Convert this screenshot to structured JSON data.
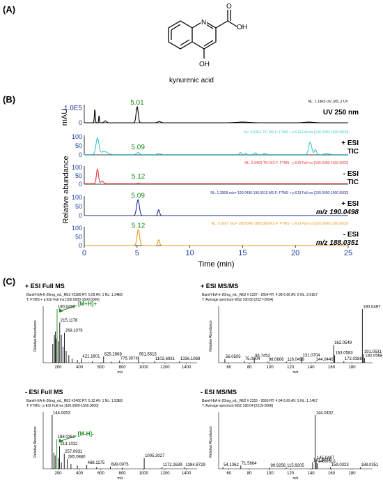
{
  "panel_labels": {
    "a": "(A)",
    "b": "(B)",
    "c": "(C)"
  },
  "structure": {
    "name": "kynurenic acid",
    "atoms": {
      "n": "N",
      "oh_acid": "OH",
      "o_acid": "O",
      "oh_ring": "OH"
    }
  },
  "chart_b": {
    "ylabel_mau": "mAU",
    "ylabel_rel": "Relative abundance",
    "xlabel": "Time (min)",
    "xlim": [
      0,
      25
    ],
    "xticks": [
      "0",
      "5",
      "10",
      "15",
      "20",
      "25"
    ],
    "traces": [
      {
        "key": "uv",
        "color": "#000000",
        "header": "NL: 1.19E5  UV_MS_2 UV",
        "label1": "UV 250 nm",
        "label2": "",
        "ytop": "1.0E5",
        "yzero": "0",
        "peak_label": "5.01",
        "peak_time": 5.01
      },
      {
        "key": "pos_tic",
        "color": "#3cc8cc",
        "header": "NL: 4.52E9  TIC  MS  F: FTMS + p ESI Full ms [100.0000-1500.0000]",
        "label1": "+ ESI",
        "label2": "TIC",
        "ytop": "100",
        "ymid": "50",
        "yzero": "0",
        "peak_label": "5.09",
        "peak_time": 5.09
      },
      {
        "key": "neg_tic",
        "color": "#e03c3c",
        "header": "NL: 2.34E9  TIC  MS  F: FTMS - p ESI Full ms [100.0000-1500.0000]",
        "label1": "- ESI",
        "label2": "TIC",
        "ytop": "100",
        "ymid": "50",
        "yzero": "0",
        "peak_label": "5.12",
        "peak_time": 5.12
      },
      {
        "key": "pos_xic",
        "color": "#1f2b96",
        "header": "NL: 1.35E8  m/z= 190.0490-190.0510  MS  F: FTMS + p ESI Full ms [100.0000-1500.0000]",
        "label1": "+ ESI",
        "label2": "m/z 190.0498",
        "ytop": "100",
        "ymid": "50",
        "yzero": "0",
        "peak_label": "5.09",
        "peak_time": 5.09
      },
      {
        "key": "neg_xic",
        "color": "#e69a1e",
        "header": "NL: 9.02E7  m/z= 188.0342-188.0380  MS  F: FTMS - p ESI Full ms [100.0000-1500.0000]",
        "label1": "- ESI",
        "label2": "m/z 188.0351",
        "ytop": "100",
        "ymid": "50",
        "yzero": "0",
        "peak_label": "5.12",
        "peak_time": 5.12
      }
    ]
  },
  "spectra": [
    {
      "key": "pos_full",
      "title": "+ ESI Full MS",
      "header1": "BamH-EA-fr-20mg_mL_RE2 #2389 RT: 5.09 AV: 1 NL: 1.34E8",
      "header2": "T: FTMS + p ESI Full ms [100.0000-1500.0000]",
      "xlim": [
        60,
        1500
      ],
      "xticks": [
        200,
        400,
        600,
        800,
        1000,
        1200,
        1400
      ],
      "ylabel": "Relative Abundance",
      "xlabel": "m/z",
      "annotation": "[M+H]+",
      "peaks": [
        {
          "mz": 190.0498,
          "rel": 100,
          "label": "190.0498",
          "hl": true
        },
        {
          "mz": 215.1178,
          "rel": 75,
          "label": "215.1178"
        },
        {
          "mz": 259.1075,
          "rel": 56,
          "label": "259.1075"
        },
        {
          "mz": 421.1601,
          "rel": 8,
          "label": "421.1601"
        },
        {
          "mz": 625.2868,
          "rel": 12,
          "label": "625.2868"
        },
        {
          "mz": 775.3074,
          "rel": 4,
          "label": "775.3074"
        },
        {
          "mz": 951.5515,
          "rel": 12,
          "label": "951.5515"
        },
        {
          "mz": 1102.6931,
          "rel": 3,
          "label": "1102.6931"
        },
        {
          "mz": 1336.1088,
          "rel": 3,
          "label": "1336.1088"
        },
        {
          "mz": 150,
          "rel": 35
        },
        {
          "mz": 165,
          "rel": 52
        },
        {
          "mz": 175,
          "rel": 58
        },
        {
          "mz": 180,
          "rel": 45
        },
        {
          "mz": 200,
          "rel": 40
        },
        {
          "mz": 230,
          "rel": 52
        },
        {
          "mz": 245,
          "rel": 30
        },
        {
          "mz": 275,
          "rel": 22
        },
        {
          "mz": 300,
          "rel": 14
        },
        {
          "mz": 330,
          "rel": 8
        },
        {
          "mz": 380,
          "rel": 5
        },
        {
          "mz": 520,
          "rel": 3
        },
        {
          "mz": 700,
          "rel": 2
        }
      ]
    },
    {
      "key": "pos_msms",
      "title": "+ ESI MS/MS",
      "header1": "BamH-EA-fr-20mg_mL_RE2 # 2327 - 2654 RT: 4.96-5.66 AV: 5 NL: 2.61E7",
      "header2": "T: Average spectrum MS2 190.05 [2327-2654]",
      "xlim": [
        50,
        200
      ],
      "xticks": [
        60,
        80,
        100,
        120,
        140,
        160,
        180
      ],
      "ylabel": "Relative Abundance",
      "xlabel": "m/z",
      "peaks": [
        {
          "mz": 190.0497,
          "rel": 100,
          "label": "190.0497"
        },
        {
          "mz": 162.0549,
          "rel": 33,
          "label": "162.0549"
        },
        {
          "mz": 191.0531,
          "rel": 16,
          "label": "191.0531"
        },
        {
          "mz": 163.0583,
          "rel": 14,
          "label": "163.0583"
        },
        {
          "mz": 192.0568,
          "rel": 9,
          "label": "192.0568"
        },
        {
          "mz": 131.0704,
          "rel": 10,
          "label": "131.0704"
        },
        {
          "mz": 56.0505,
          "rel": 7,
          "label": "56.0505"
        },
        {
          "mz": 84.7452,
          "rel": 9,
          "label": "84.7452"
        },
        {
          "mz": 75.0004,
          "rel": 3,
          "label": "75.0004"
        },
        {
          "mz": 98.0606,
          "rel": 2,
          "label": "98.0606"
        },
        {
          "mz": 116.0499,
          "rel": 2,
          "label": "116.0499"
        },
        {
          "mz": 144.044,
          "rel": 2,
          "label": "144.0440"
        },
        {
          "mz": 172.0388,
          "rel": 3,
          "label": "172.0388"
        }
      ]
    },
    {
      "key": "neg_full",
      "title": "- ESI Full MS",
      "header1": "BamH-EA-fr-20mg_mL_RE2 #2400 RT: 5.12 AV: 1 NL: 1.53E8",
      "header2": "T: FTMS - p ESI Full ms [100.0000-1500.0000]",
      "xlim": [
        60,
        1500
      ],
      "xticks": [
        200,
        400,
        600,
        800,
        1000,
        1200,
        1400
      ],
      "ylabel": "Relative Abundance",
      "xlabel": "m/z",
      "annotation": "[M-H]-",
      "peaks": [
        {
          "mz": 144.0453,
          "rel": 100,
          "label": "144.0453"
        },
        {
          "mz": 188.0351,
          "rel": 55,
          "label": "188.0351",
          "hl": true
        },
        {
          "mz": 213.1032,
          "rel": 42,
          "label": "213.1032"
        },
        {
          "mz": 257.0931,
          "rel": 28,
          "label": "257.0931"
        },
        {
          "mz": 285.088,
          "rel": 18,
          "label": "285.0880"
        },
        {
          "mz": 468.1175,
          "rel": 7,
          "label": "468.1175"
        },
        {
          "mz": 689.0975,
          "rel": 4,
          "label": "689.0975"
        },
        {
          "mz": 1005.3027,
          "rel": 20,
          "label": "1005.3027"
        },
        {
          "mz": 1172.2639,
          "rel": 3,
          "label": "1172.2639"
        },
        {
          "mz": 1384.8729,
          "rel": 3,
          "label": "1384.8729"
        },
        {
          "mz": 160,
          "rel": 30
        },
        {
          "mz": 172,
          "rel": 25
        },
        {
          "mz": 200,
          "rel": 20
        },
        {
          "mz": 230,
          "rel": 12
        },
        {
          "mz": 320,
          "rel": 9
        },
        {
          "mz": 380,
          "rel": 6
        },
        {
          "mz": 560,
          "rel": 3
        },
        {
          "mz": 800,
          "rel": 2
        }
      ]
    },
    {
      "key": "neg_msms",
      "title": "- ESI MS/MS",
      "header1": "BamH-EA-fr-20mg_mL_RE2 # 2315 - 2666 RT: 4.94-5.69 AV: 5 NL: 1.14E7",
      "header2": "T: Average spectrum MS2 188.04 [2315-2666]",
      "xlim": [
        50,
        200
      ],
      "xticks": [
        60,
        80,
        100,
        120,
        140,
        160,
        180
      ],
      "ylabel": "Relative Abundance",
      "xlabel": "m/z",
      "peaks": [
        {
          "mz": 144.0452,
          "rel": 100,
          "label": "144.0452"
        },
        {
          "mz": 145.0487,
          "rel": 16,
          "label": "145.0487"
        },
        {
          "mz": 141.5674,
          "rel": 12,
          "label": "141.5674"
        },
        {
          "mz": 146.051,
          "rel": 10,
          "label": "146.0510"
        },
        {
          "mz": 159.0323,
          "rel": 3,
          "label": "159.0323"
        },
        {
          "mz": 54.1362,
          "rel": 3,
          "label": "54.1362"
        },
        {
          "mz": 71.5664,
          "rel": 6,
          "label": "71.5664"
        },
        {
          "mz": 99.9256,
          "rel": 2,
          "label": "99.9256"
        },
        {
          "mz": 115.9205,
          "rel": 2,
          "label": "115.9205"
        },
        {
          "mz": 188.0351,
          "rel": 3,
          "label": "188.0351"
        }
      ]
    }
  ],
  "chart_data": [
    {
      "type": "line",
      "title": "",
      "xlabel": "Time (min)",
      "ylabel": "Relative abundance",
      "xlim": [
        0,
        25
      ],
      "series": [
        {
          "name": "UV 250 nm",
          "peaks": [
            {
              "x": 5.01,
              "label": "5.01"
            }
          ]
        },
        {
          "name": "+ ESI TIC",
          "peaks": [
            {
              "x": 5.09,
              "label": "5.09"
            }
          ]
        },
        {
          "name": "- ESI TIC",
          "peaks": [
            {
              "x": 5.12,
              "label": "5.12"
            }
          ]
        },
        {
          "name": "+ ESI m/z 190.0498",
          "peaks": [
            {
              "x": 5.09,
              "label": "5.09"
            }
          ]
        },
        {
          "name": "- ESI m/z 188.0351",
          "peaks": [
            {
              "x": 5.12,
              "label": "5.12"
            }
          ]
        }
      ]
    },
    {
      "type": "bar",
      "title": "+ ESI Full MS",
      "xlabel": "m/z",
      "ylabel": "Relative Abundance"
    },
    {
      "type": "bar",
      "title": "+ ESI MS/MS",
      "xlabel": "m/z",
      "ylabel": "Relative Abundance"
    },
    {
      "type": "bar",
      "title": "- ESI Full MS",
      "xlabel": "m/z",
      "ylabel": "Relative Abundance"
    },
    {
      "type": "bar",
      "title": "- ESI MS/MS",
      "xlabel": "m/z",
      "ylabel": "Relative Abundance"
    }
  ]
}
